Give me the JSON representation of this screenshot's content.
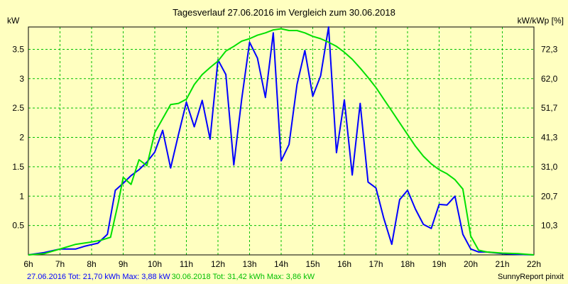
{
  "chart_data": {
    "type": "line",
    "title": "Tagesverlauf 27.06.2016 im Vergleich zum 30.06.2018",
    "ylabel_left": "kW",
    "ylabel_right": "kW/kWp [%]",
    "xlim": [
      6,
      22
    ],
    "ylim": [
      0,
      3.88
    ],
    "x_ticks": [
      "6h",
      "7h",
      "8h",
      "9h",
      "10h",
      "11h",
      "12h",
      "13h",
      "14h",
      "15h",
      "16h",
      "17h",
      "18h",
      "19h",
      "20h",
      "21h",
      "22h"
    ],
    "y_ticks_left": [
      "0.5",
      "1",
      "1.5",
      "2",
      "2.5",
      "3",
      "3.5"
    ],
    "y_ticks_right": [
      "10,3",
      "20,7",
      "31,0",
      "41,3",
      "51,7",
      "62,0",
      "72,3"
    ],
    "grid": true,
    "series": [
      {
        "name": "27.06.2016",
        "color": "#0000ff",
        "x": [
          6.0,
          6.5,
          7.0,
          7.5,
          7.8,
          8.2,
          8.5,
          8.75,
          9.0,
          9.25,
          9.5,
          9.75,
          10.0,
          10.25,
          10.5,
          10.75,
          11.0,
          11.25,
          11.5,
          11.75,
          12.0,
          12.25,
          12.5,
          12.75,
          13.0,
          13.25,
          13.5,
          13.75,
          14.0,
          14.25,
          14.5,
          14.75,
          15.0,
          15.25,
          15.5,
          15.75,
          16.0,
          16.25,
          16.5,
          16.75,
          17.0,
          17.25,
          17.5,
          17.75,
          18.0,
          18.25,
          18.5,
          18.75,
          19.0,
          19.25,
          19.5,
          19.75,
          20.0,
          20.25,
          20.5,
          21.0,
          21.5,
          22.0
        ],
        "y": [
          0.0,
          0.04,
          0.1,
          0.1,
          0.15,
          0.2,
          0.35,
          1.1,
          1.22,
          1.35,
          1.45,
          1.58,
          1.75,
          2.12,
          1.48,
          2.05,
          2.6,
          2.18,
          2.63,
          1.97,
          3.32,
          3.07,
          1.53,
          2.65,
          3.62,
          3.35,
          2.68,
          3.78,
          1.6,
          1.88,
          2.9,
          3.48,
          2.7,
          3.05,
          3.88,
          1.74,
          2.64,
          1.36,
          2.58,
          1.24,
          1.14,
          0.62,
          0.18,
          0.94,
          1.1,
          0.78,
          0.52,
          0.45,
          0.86,
          0.85,
          1.0,
          0.35,
          0.1,
          0.05,
          0.05,
          0.02,
          0.01,
          0.0
        ]
      },
      {
        "name": "30.06.2018",
        "color": "#00e000",
        "x": [
          6.0,
          6.5,
          7.0,
          7.5,
          8.0,
          8.3,
          8.6,
          8.85,
          9.0,
          9.25,
          9.5,
          9.75,
          10.0,
          10.25,
          10.5,
          10.75,
          11.0,
          11.25,
          11.5,
          11.75,
          12.0,
          12.25,
          12.5,
          12.75,
          13.0,
          13.25,
          13.5,
          13.75,
          14.0,
          14.25,
          14.5,
          14.75,
          15.0,
          15.25,
          15.5,
          15.75,
          16.0,
          16.25,
          16.5,
          16.75,
          17.0,
          17.25,
          17.5,
          17.75,
          18.0,
          18.25,
          18.5,
          18.75,
          19.0,
          19.25,
          19.5,
          19.75,
          20.0,
          20.25,
          20.5,
          21.0,
          21.5,
          22.0
        ],
        "y": [
          0.0,
          0.02,
          0.1,
          0.18,
          0.22,
          0.25,
          0.3,
          0.9,
          1.32,
          1.2,
          1.62,
          1.52,
          2.08,
          2.32,
          2.56,
          2.58,
          2.65,
          2.9,
          3.07,
          3.19,
          3.3,
          3.47,
          3.55,
          3.64,
          3.68,
          3.74,
          3.78,
          3.83,
          3.85,
          3.82,
          3.82,
          3.78,
          3.72,
          3.68,
          3.62,
          3.55,
          3.45,
          3.33,
          3.18,
          3.02,
          2.85,
          2.65,
          2.45,
          2.25,
          2.05,
          1.85,
          1.68,
          1.55,
          1.45,
          1.38,
          1.28,
          1.12,
          0.32,
          0.08,
          0.05,
          0.03,
          0.02,
          0.0
        ]
      }
    ],
    "footer_blue": "27.06.2016 Tot: 21,70 kWh Max: 3,88 kW",
    "footer_green": "30.06.2018 Tot: 31,42 kWh Max: 3,86 kW",
    "footer_right": "SunnyReport pinxit"
  }
}
